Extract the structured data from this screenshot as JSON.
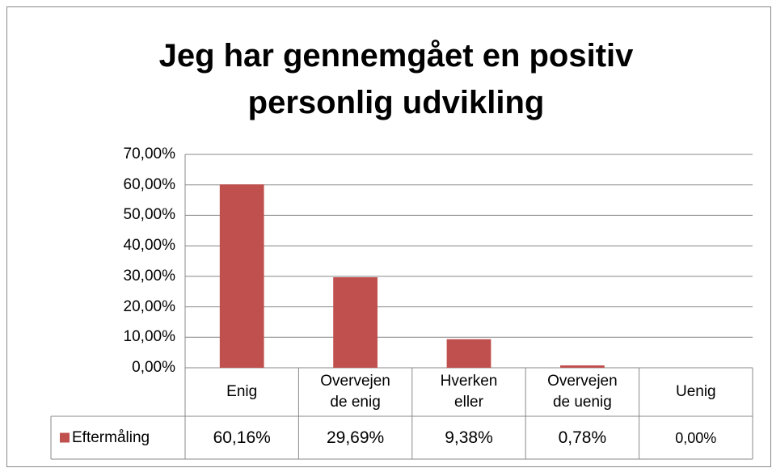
{
  "chart_data": {
    "type": "bar",
    "title": "Jeg har gennemgået en positiv personlig udvikling",
    "categories": [
      "Enig",
      "Overvejen de enig",
      "Hverken eller",
      "Overvejen de uenig",
      "Uenig"
    ],
    "series": [
      {
        "name": "Eftermåling",
        "color": "#c0504d",
        "values": [
          60.16,
          29.69,
          9.38,
          0.78,
          0
        ],
        "value_labels": [
          "60,16%",
          "29,69%",
          "9,38%",
          "0,78%",
          "0,00%"
        ]
      }
    ],
    "ylim": [
      0,
      70
    ],
    "yticks": [
      {
        "value": 0,
        "label": "0,00%"
      },
      {
        "value": 10,
        "label": "10,00%"
      },
      {
        "value": 20,
        "label": "20,00%"
      },
      {
        "value": 30,
        "label": "30,00%"
      },
      {
        "value": 40,
        "label": "40,00%"
      },
      {
        "value": 50,
        "label": "50,00%"
      },
      {
        "value": 60,
        "label": "60,00%"
      },
      {
        "value": 70,
        "label": "70,00%"
      }
    ],
    "grid": true
  }
}
